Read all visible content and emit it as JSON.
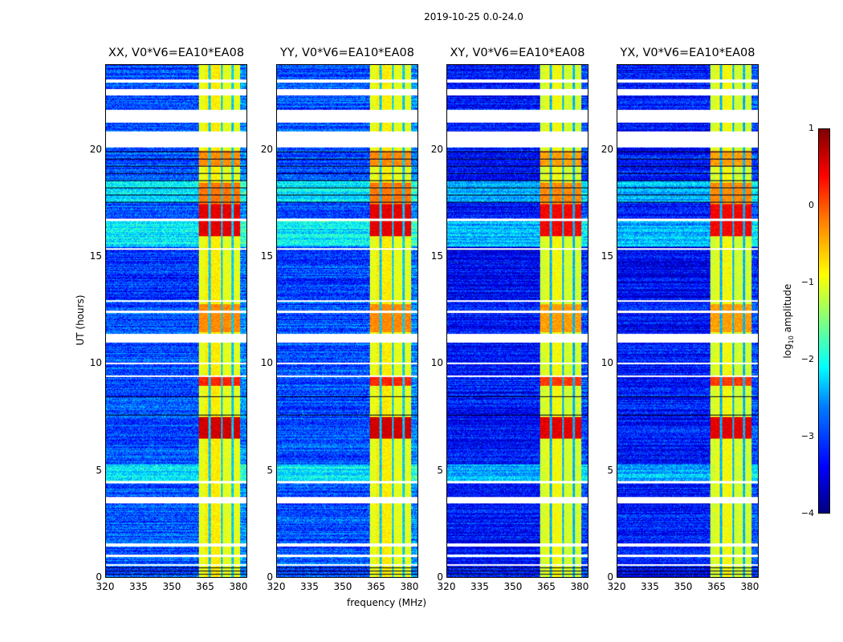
{
  "title": "2019-10-25 0.0-24.0",
  "chart_data": {
    "type": "heatmap",
    "title": "2019-10-25 0.0-24.0",
    "xlabel": "frequency (MHz)",
    "ylabel": "UT (hours)",
    "xlim": [
      320,
      384
    ],
    "ylim": [
      0,
      24
    ],
    "xticks": [
      "320",
      "335",
      "350",
      "365",
      "380"
    ],
    "yticks": [
      "0",
      "5",
      "10",
      "15",
      "20"
    ],
    "panels": [
      {
        "title": "XX, V0*V6=EA10*EA08",
        "level_offset": 0.0
      },
      {
        "title": "YY, V0*V6=EA10*EA08",
        "level_offset": 0.0
      },
      {
        "title": "XY, V0*V6=EA10*EA08",
        "level_offset": -0.2
      },
      {
        "title": "YX, V0*V6=EA10*EA08",
        "level_offset": -0.2
      }
    ],
    "colorbar": {
      "label": "log10 amplitude",
      "label_base": "log",
      "label_sub": "10",
      "label_rest": " amplitude",
      "range": [
        -4,
        1
      ],
      "ticks": [
        "1",
        "0",
        "−1",
        "−2",
        "−3",
        "−4"
      ],
      "colormap": "jet"
    },
    "rfi_band_mhz": [
      362,
      381
    ],
    "flagged_hours": [
      [
        0.55,
        0.62
      ],
      [
        0.95,
        1.05
      ],
      [
        1.45,
        1.6
      ],
      [
        3.45,
        3.75
      ],
      [
        4.4,
        4.5
      ],
      [
        9.4,
        9.45
      ],
      [
        10.0,
        10.05
      ],
      [
        11.0,
        11.4
      ],
      [
        12.4,
        12.5
      ],
      [
        12.9,
        13.0
      ],
      [
        15.35,
        15.45
      ],
      [
        16.7,
        16.8
      ],
      [
        20.15,
        20.9
      ],
      [
        21.3,
        21.9
      ],
      [
        22.6,
        22.9
      ],
      [
        23.2,
        23.35
      ]
    ],
    "bright_hours": [
      [
        6.5,
        7.5,
        0.6
      ],
      [
        16.0,
        17.5,
        0.5
      ],
      [
        9.0,
        9.4,
        0.2
      ],
      [
        11.5,
        12.8,
        -0.3
      ],
      [
        17.5,
        18.5,
        -0.2
      ],
      [
        19.3,
        20.0,
        -0.3
      ]
    ]
  }
}
